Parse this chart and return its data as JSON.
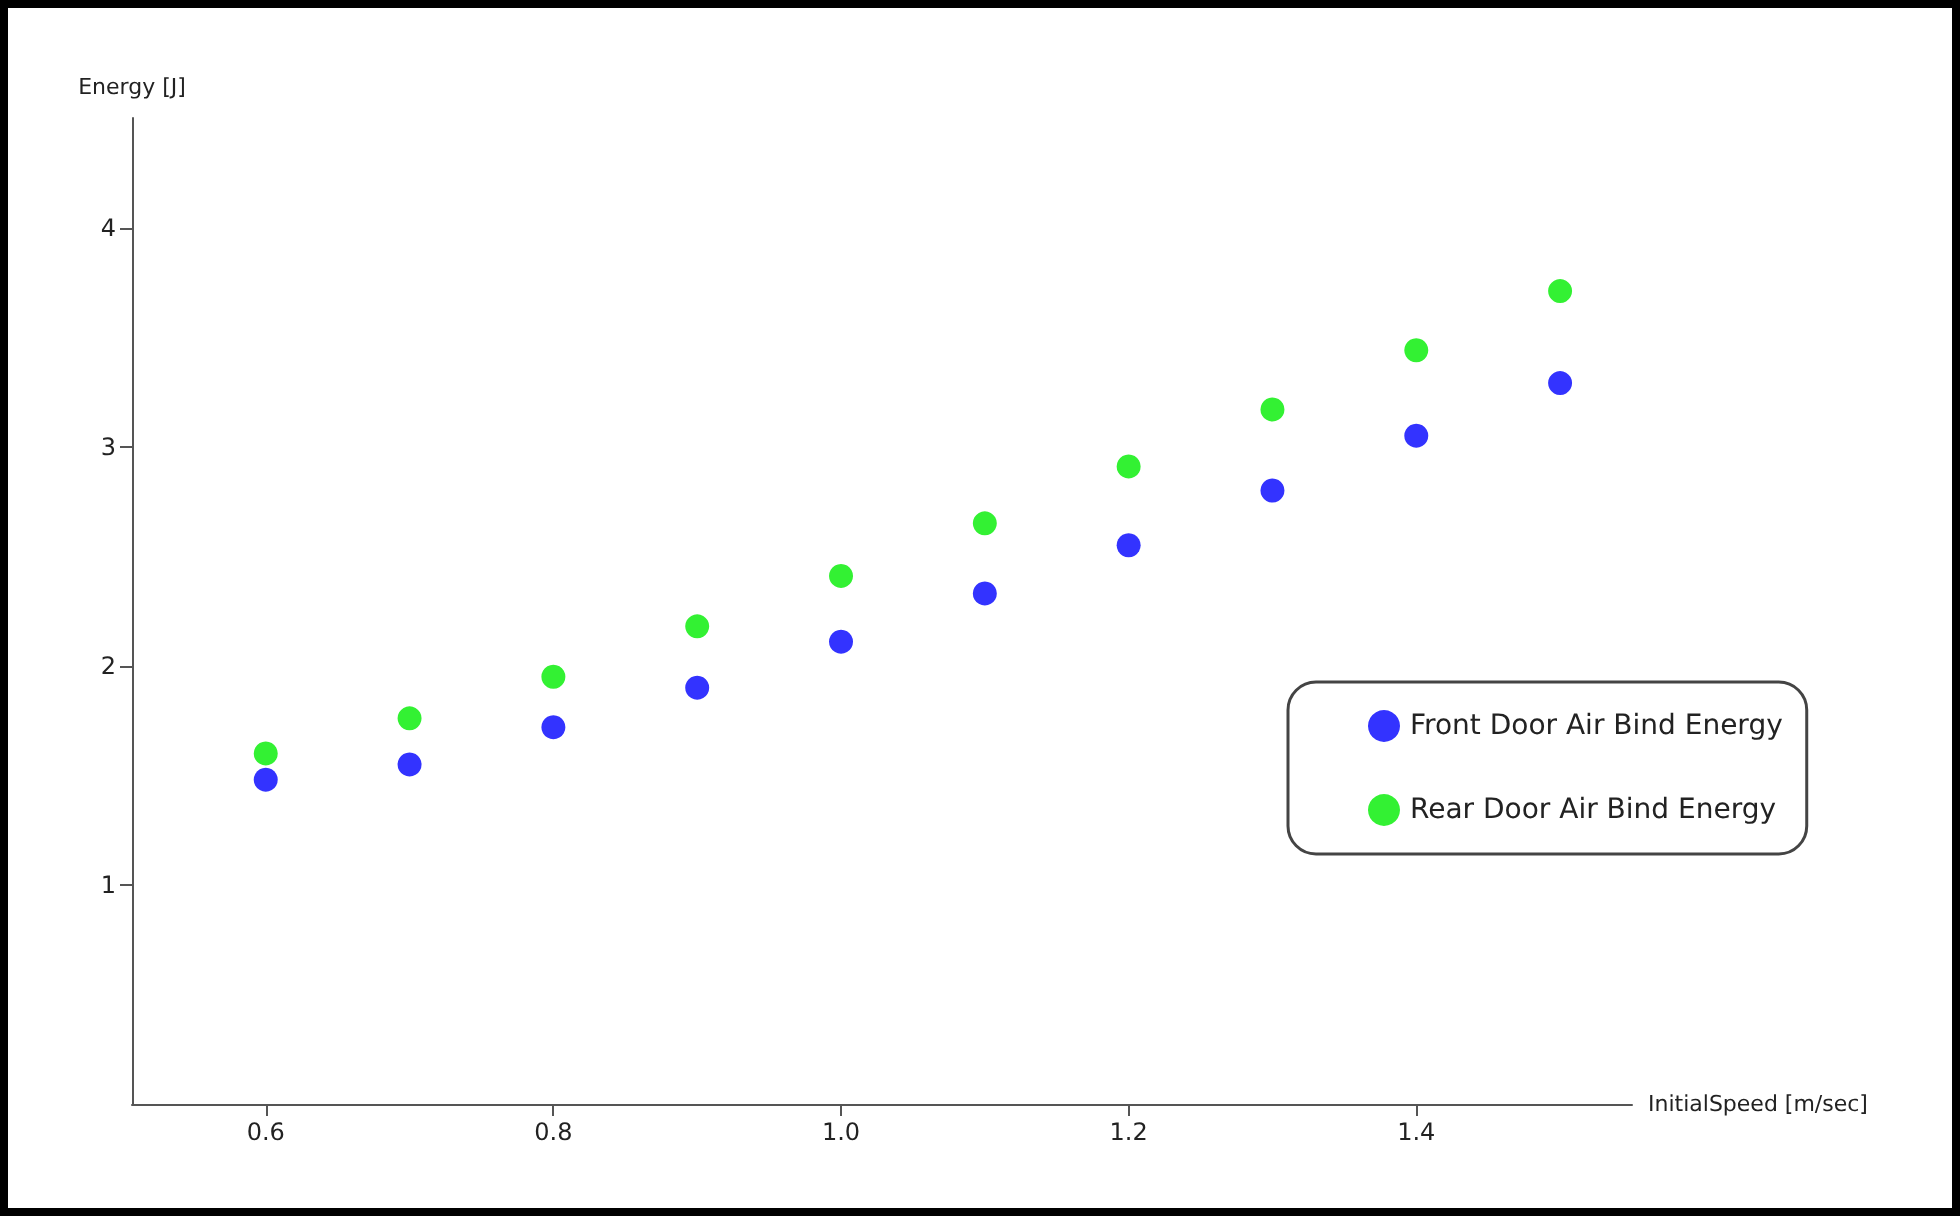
{
  "chart_data": {
    "type": "scatter",
    "xlabel": "InitialSpeed [m/sec]",
    "ylabel": "Energy [J]",
    "x": [
      0.6,
      0.7,
      0.8,
      0.9,
      1.0,
      1.1,
      1.2,
      1.3,
      1.4,
      1.5
    ],
    "series": [
      {
        "name": "Front Door Air Bind Energy",
        "color": "#0000ff",
        "values": [
          1.48,
          1.55,
          1.72,
          1.9,
          2.11,
          2.33,
          2.55,
          2.8,
          3.05,
          3.29
        ]
      },
      {
        "name": "Rear Door Air Bind Energy",
        "color": "#00ee00",
        "values": [
          1.6,
          1.76,
          1.95,
          2.18,
          2.41,
          2.65,
          2.91,
          3.17,
          3.44,
          3.71
        ]
      }
    ],
    "xlim": [
      0.507,
      1.55
    ],
    "xticks": [
      0.6,
      0.8,
      {
        "value": 1,
        "label": "1.0"
      },
      1.2,
      1.4
    ],
    "ylim": [
      0,
      4.5
    ],
    "yticks": [
      1,
      2,
      3,
      4
    ],
    "grid": false,
    "legend": "right",
    "marker": "circle"
  }
}
